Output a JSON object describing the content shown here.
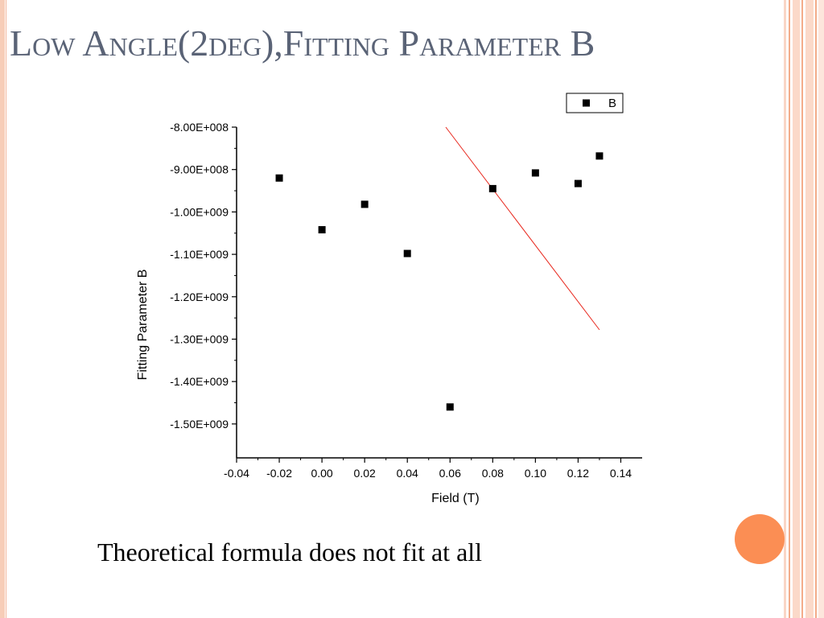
{
  "slide": {
    "title": "Low Angle(2deg),Fitting Parameter B",
    "caption": "Theoretical formula does not fit at all",
    "colors": {
      "title_text": "#5a6376",
      "accent_circle": "#fb8e54",
      "fit_line": "#e8281e",
      "points": "#000000",
      "border_stripes": "#f3ac8a"
    }
  },
  "chart_data": {
    "type": "scatter",
    "xlabel": "Field (T)",
    "ylabel": "Fitting Parameter B",
    "xlim": [
      -0.04,
      0.15
    ],
    "ylim": [
      -1580000000.0,
      -800000000.0
    ],
    "x_ticks": [
      -0.04,
      -0.02,
      0.0,
      0.02,
      0.04,
      0.06,
      0.08,
      0.1,
      0.12,
      0.14
    ],
    "x_tick_labels": [
      "-0.04",
      "-0.02",
      "0.00",
      "0.02",
      "0.04",
      "0.06",
      "0.08",
      "0.10",
      "0.12",
      "0.14"
    ],
    "y_ticks": [
      -800000000.0,
      -900000000.0,
      -1000000000.0,
      -1100000000.0,
      -1200000000.0,
      -1300000000.0,
      -1400000000.0,
      -1500000000.0
    ],
    "y_tick_labels": [
      "-8.00E+008",
      "-9.00E+008",
      "-1.00E+009",
      "-1.10E+009",
      "-1.20E+009",
      "-1.30E+009",
      "-1.40E+009",
      "-1.50E+009"
    ],
    "legend": {
      "position": "top-right",
      "entries": [
        "B"
      ]
    },
    "grid": false,
    "series": [
      {
        "name": "B",
        "x": [
          -0.02,
          0.0,
          0.02,
          0.04,
          0.06,
          0.08,
          0.1,
          0.12,
          0.13
        ],
        "y": [
          -920000000.0,
          -1042000000.0,
          -982000000.0,
          -1098000000.0,
          -1460000000.0,
          -945000000.0,
          -908000000.0,
          -933000000.0,
          -868000000.0
        ]
      }
    ],
    "fit_line": {
      "x": [
        0.058,
        0.13
      ],
      "y": [
        -800000000.0,
        -1278000000.0
      ]
    }
  }
}
